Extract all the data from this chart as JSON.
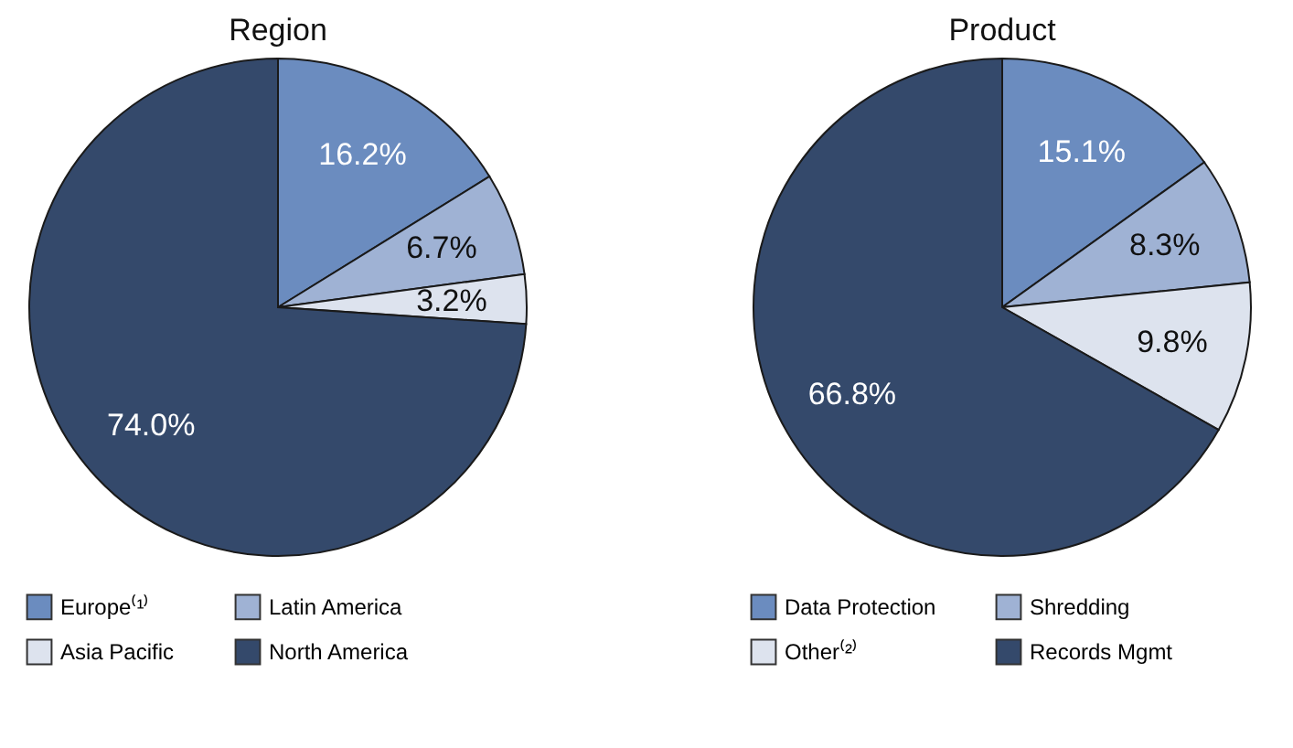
{
  "chart_data": [
    {
      "type": "pie",
      "title": "Region",
      "categories": [
        "Europe⁽¹⁾",
        "Latin America",
        "Asia Pacific",
        "North America"
      ],
      "values": [
        16.2,
        6.7,
        3.2,
        74.0
      ],
      "colors": [
        "#6b8cbf",
        "#9fb2d4",
        "#dde3ee",
        "#34496b"
      ],
      "value_labels": [
        "16.2%",
        "6.7%",
        "3.2%",
        "74.0%"
      ],
      "legend": "bottom"
    },
    {
      "type": "pie",
      "title": "Product",
      "categories": [
        "Data Protection",
        "Shredding",
        "Other⁽²⁾",
        "Records Mgmt"
      ],
      "values": [
        15.1,
        8.3,
        9.8,
        66.8
      ],
      "colors": [
        "#6b8cbf",
        "#9fb2d4",
        "#dde3ee",
        "#34496b"
      ],
      "value_labels": [
        "15.1%",
        "8.3%",
        "9.8%",
        "66.8%"
      ],
      "legend": "bottom"
    }
  ]
}
